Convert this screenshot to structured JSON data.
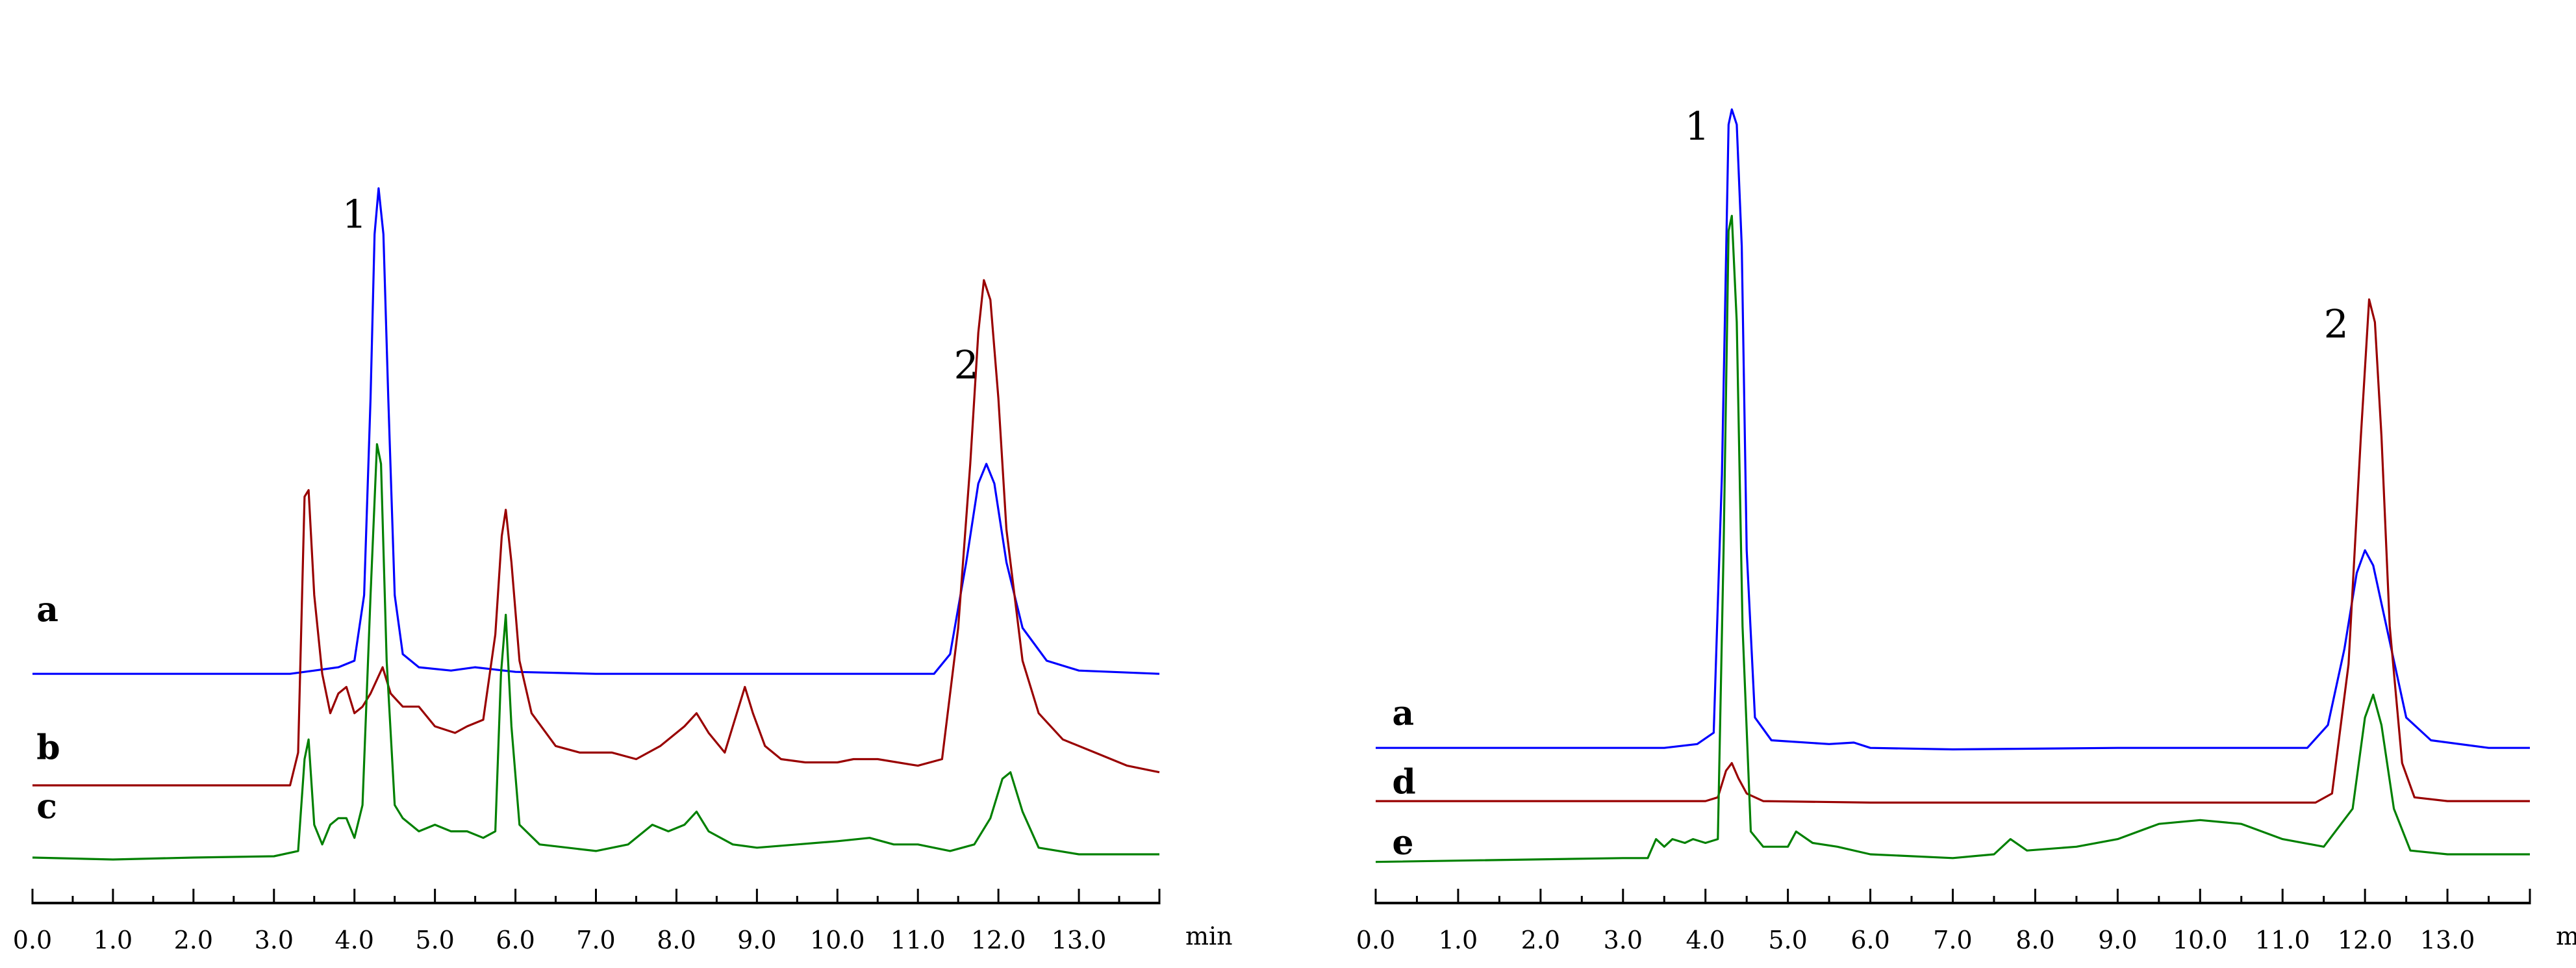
{
  "chart_data": [
    {
      "type": "line",
      "title": "",
      "xlabel": "",
      "ylabel": "",
      "unit_label": "min",
      "xlim": [
        0,
        14
      ],
      "ylim": [
        0,
        100
      ],
      "grid": false,
      "x_ticks": [
        "0.0",
        "1.0",
        "2.0",
        "3.0",
        "4.0",
        "5.0",
        "6.0",
        "7.0",
        "8.0",
        "9.0",
        "10.0",
        "11.0",
        "12.0",
        "13.0"
      ],
      "peak_labels": [
        {
          "text": "1",
          "x": 4.0,
          "y": 96
        },
        {
          "text": "2",
          "x": 11.6,
          "y": 73
        }
      ],
      "series": [
        {
          "name": "a",
          "color": "#0000ff",
          "label_x": 0.05,
          "label_y": 36,
          "points": [
            [
              0,
              28
            ],
            [
              3.2,
              28
            ],
            [
              3.5,
              28.5
            ],
            [
              3.8,
              29
            ],
            [
              4.0,
              30
            ],
            [
              4.12,
              40
            ],
            [
              4.2,
              70
            ],
            [
              4.25,
              95
            ],
            [
              4.3,
              102
            ],
            [
              4.36,
              95
            ],
            [
              4.42,
              70
            ],
            [
              4.5,
              40
            ],
            [
              4.6,
              31
            ],
            [
              4.8,
              29
            ],
            [
              5.2,
              28.5
            ],
            [
              5.5,
              29
            ],
            [
              6.0,
              28.3
            ],
            [
              7,
              28
            ],
            [
              10,
              28
            ],
            [
              11.2,
              28
            ],
            [
              11.4,
              31
            ],
            [
              11.6,
              45
            ],
            [
              11.75,
              57
            ],
            [
              11.85,
              60
            ],
            [
              11.95,
              57
            ],
            [
              12.1,
              45
            ],
            [
              12.3,
              35
            ],
            [
              12.6,
              30
            ],
            [
              13,
              28.5
            ],
            [
              14,
              28
            ]
          ]
        },
        {
          "name": "b",
          "color": "#990000",
          "label_x": 0.05,
          "label_y": 15,
          "points": [
            [
              0,
              11
            ],
            [
              3.2,
              11
            ],
            [
              3.3,
              16
            ],
            [
              3.38,
              55
            ],
            [
              3.43,
              56
            ],
            [
              3.5,
              40
            ],
            [
              3.6,
              28
            ],
            [
              3.7,
              22
            ],
            [
              3.8,
              25
            ],
            [
              3.9,
              26
            ],
            [
              4.0,
              22
            ],
            [
              4.1,
              23
            ],
            [
              4.2,
              25
            ],
            [
              4.35,
              29
            ],
            [
              4.45,
              25
            ],
            [
              4.6,
              23
            ],
            [
              4.8,
              23
            ],
            [
              5.0,
              20
            ],
            [
              5.25,
              19
            ],
            [
              5.4,
              20
            ],
            [
              5.6,
              21
            ],
            [
              5.75,
              34
            ],
            [
              5.83,
              49
            ],
            [
              5.88,
              53
            ],
            [
              5.95,
              45
            ],
            [
              6.05,
              30
            ],
            [
              6.2,
              22
            ],
            [
              6.5,
              17
            ],
            [
              6.8,
              16
            ],
            [
              7.0,
              16
            ],
            [
              7.2,
              16
            ],
            [
              7.5,
              15
            ],
            [
              7.8,
              17
            ],
            [
              8.1,
              20
            ],
            [
              8.25,
              22
            ],
            [
              8.4,
              19
            ],
            [
              8.6,
              16
            ],
            [
              8.75,
              22
            ],
            [
              8.85,
              26
            ],
            [
              8.95,
              22
            ],
            [
              9.1,
              17
            ],
            [
              9.3,
              15
            ],
            [
              9.6,
              14.5
            ],
            [
              10,
              14.5
            ],
            [
              10.2,
              15
            ],
            [
              10.5,
              15
            ],
            [
              11,
              14
            ],
            [
              11.3,
              15
            ],
            [
              11.5,
              35
            ],
            [
              11.65,
              60
            ],
            [
              11.75,
              80
            ],
            [
              11.82,
              88
            ],
            [
              11.9,
              85
            ],
            [
              12.0,
              70
            ],
            [
              12.1,
              50
            ],
            [
              12.3,
              30
            ],
            [
              12.5,
              22
            ],
            [
              12.8,
              18
            ],
            [
              13.2,
              16
            ],
            [
              13.6,
              14
            ],
            [
              14,
              13
            ]
          ]
        },
        {
          "name": "c",
          "color": "#008000",
          "label_x": 0.05,
          "label_y": 6,
          "points": [
            [
              0,
              0
            ],
            [
              1,
              -0.3
            ],
            [
              2,
              0
            ],
            [
              3,
              0.2
            ],
            [
              3.3,
              1
            ],
            [
              3.38,
              15
            ],
            [
              3.43,
              18
            ],
            [
              3.5,
              5
            ],
            [
              3.6,
              2
            ],
            [
              3.7,
              5
            ],
            [
              3.8,
              6
            ],
            [
              3.9,
              6
            ],
            [
              4.0,
              3
            ],
            [
              4.1,
              8
            ],
            [
              4.2,
              40
            ],
            [
              4.28,
              63
            ],
            [
              4.33,
              60
            ],
            [
              4.4,
              30
            ],
            [
              4.5,
              8
            ],
            [
              4.6,
              6
            ],
            [
              4.8,
              4
            ],
            [
              5.0,
              5
            ],
            [
              5.2,
              4
            ],
            [
              5.4,
              4
            ],
            [
              5.6,
              3
            ],
            [
              5.75,
              4
            ],
            [
              5.82,
              28
            ],
            [
              5.88,
              37
            ],
            [
              5.95,
              20
            ],
            [
              6.05,
              5
            ],
            [
              6.3,
              2
            ],
            [
              7.0,
              1
            ],
            [
              7.4,
              2
            ],
            [
              7.7,
              5
            ],
            [
              7.9,
              4
            ],
            [
              8.1,
              5
            ],
            [
              8.25,
              7
            ],
            [
              8.4,
              4
            ],
            [
              8.7,
              2
            ],
            [
              9.0,
              1.5
            ],
            [
              9.5,
              2
            ],
            [
              10,
              2.5
            ],
            [
              10.4,
              3
            ],
            [
              10.7,
              2
            ],
            [
              11,
              2
            ],
            [
              11.4,
              1
            ],
            [
              11.7,
              2
            ],
            [
              11.9,
              6
            ],
            [
              12.05,
              12
            ],
            [
              12.15,
              13
            ],
            [
              12.3,
              7
            ],
            [
              12.5,
              1.5
            ],
            [
              13,
              0.5
            ],
            [
              14,
              0.5
            ]
          ]
        }
      ]
    },
    {
      "type": "line",
      "title": "",
      "xlabel": "",
      "ylabel": "",
      "unit_label": "min",
      "xlim": [
        0,
        14
      ],
      "ylim": [
        0,
        100
      ],
      "grid": false,
      "x_ticks": [
        "0.0",
        "1.0",
        "2.0",
        "3.0",
        "4.0",
        "5.0",
        "6.0",
        "7.0",
        "8.0",
        "9.0",
        "10.0",
        "11.0",
        "12.0",
        "13.0"
      ],
      "peak_labels": [
        {
          "text": "1",
          "x": 3.9,
          "y": 94
        },
        {
          "text": "2",
          "x": 11.65,
          "y": 68
        }
      ],
      "series": [
        {
          "name": "a",
          "color": "#0000ff",
          "label_x": 0.2,
          "label_y": 17,
          "points": [
            [
              0,
              14
            ],
            [
              3.5,
              14
            ],
            [
              3.9,
              14.5
            ],
            [
              4.1,
              16
            ],
            [
              4.2,
              50
            ],
            [
              4.28,
              96
            ],
            [
              4.32,
              98
            ],
            [
              4.38,
              96
            ],
            [
              4.44,
              80
            ],
            [
              4.5,
              40
            ],
            [
              4.6,
              18
            ],
            [
              4.8,
              15
            ],
            [
              5.5,
              14.5
            ],
            [
              5.8,
              14.7
            ],
            [
              6,
              14
            ],
            [
              7,
              13.8
            ],
            [
              9,
              14
            ],
            [
              11.3,
              14
            ],
            [
              11.55,
              17
            ],
            [
              11.75,
              27
            ],
            [
              11.9,
              37
            ],
            [
              12.0,
              40
            ],
            [
              12.1,
              38
            ],
            [
              12.3,
              28
            ],
            [
              12.5,
              18
            ],
            [
              12.8,
              15
            ],
            [
              13.5,
              14
            ],
            [
              14,
              14
            ]
          ]
        },
        {
          "name": "d",
          "color": "#990000",
          "label_x": 0.2,
          "label_y": 8,
          "points": [
            [
              0,
              7
            ],
            [
              4.0,
              7
            ],
            [
              4.15,
              7.5
            ],
            [
              4.25,
              11
            ],
            [
              4.32,
              12
            ],
            [
              4.4,
              10
            ],
            [
              4.5,
              8
            ],
            [
              4.7,
              7
            ],
            [
              6,
              6.8
            ],
            [
              8,
              6.8
            ],
            [
              11.4,
              6.8
            ],
            [
              11.6,
              8
            ],
            [
              11.8,
              25
            ],
            [
              11.95,
              55
            ],
            [
              12.05,
              73
            ],
            [
              12.12,
              70
            ],
            [
              12.2,
              55
            ],
            [
              12.3,
              30
            ],
            [
              12.45,
              12
            ],
            [
              12.6,
              7.5
            ],
            [
              13,
              7
            ],
            [
              14,
              7
            ]
          ]
        },
        {
          "name": "e",
          "color": "#008000",
          "label_x": 0.2,
          "label_y": 0,
          "points": [
            [
              0,
              -1
            ],
            [
              3,
              -0.5
            ],
            [
              3.3,
              -0.5
            ],
            [
              3.4,
              2
            ],
            [
              3.5,
              1
            ],
            [
              3.6,
              2
            ],
            [
              3.75,
              1.5
            ],
            [
              3.85,
              2
            ],
            [
              4.0,
              1.5
            ],
            [
              4.15,
              2
            ],
            [
              4.22,
              40
            ],
            [
              4.28,
              82
            ],
            [
              4.32,
              84
            ],
            [
              4.38,
              70
            ],
            [
              4.45,
              30
            ],
            [
              4.55,
              3
            ],
            [
              4.7,
              1
            ],
            [
              5.0,
              1
            ],
            [
              5.1,
              3
            ],
            [
              5.3,
              1.5
            ],
            [
              5.6,
              1
            ],
            [
              6,
              0
            ],
            [
              7,
              -0.5
            ],
            [
              7.5,
              0
            ],
            [
              7.7,
              2
            ],
            [
              7.9,
              0.5
            ],
            [
              8.5,
              1
            ],
            [
              9,
              2
            ],
            [
              9.5,
              4
            ],
            [
              10,
              4.5
            ],
            [
              10.5,
              4
            ],
            [
              11,
              2
            ],
            [
              11.5,
              1
            ],
            [
              11.85,
              6
            ],
            [
              12.0,
              18
            ],
            [
              12.1,
              21
            ],
            [
              12.2,
              17
            ],
            [
              12.35,
              6
            ],
            [
              12.55,
              0.5
            ],
            [
              13,
              0
            ],
            [
              14,
              0
            ]
          ]
        }
      ]
    }
  ]
}
